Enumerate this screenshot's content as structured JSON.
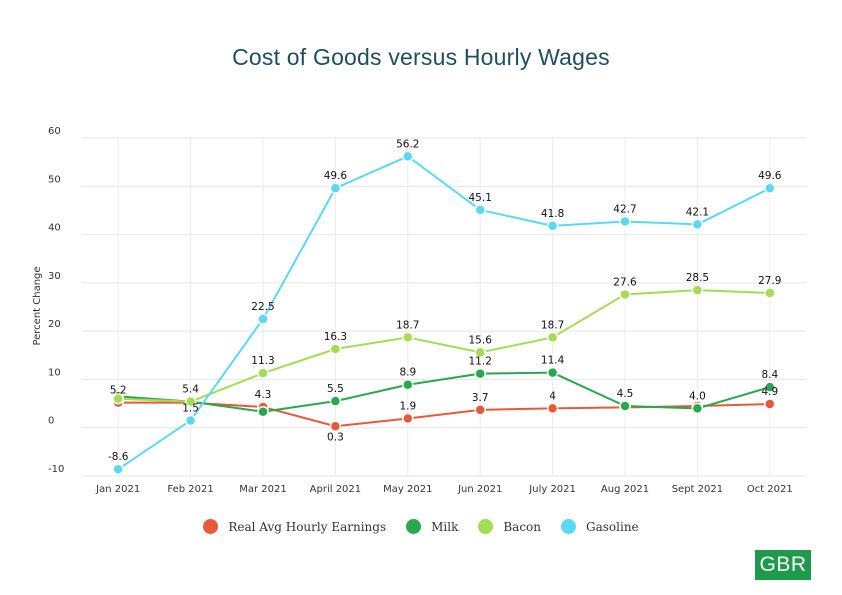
{
  "chart_data": {
    "type": "line",
    "title": "Cost of Goods versus Hourly Wages",
    "xlabel": "",
    "ylabel": "Percent Change",
    "ylim": [
      -10,
      60
    ],
    "yticks": [
      "-10",
      "0",
      "10",
      "20",
      "30",
      "40",
      "50",
      "60"
    ],
    "grid": true,
    "legend_position": "bottom",
    "categories": [
      "Jan 2021",
      "Feb 2021",
      "Mar 2021",
      "April 2021",
      "May 2021",
      "Jun 2021",
      "July 2021",
      "Aug 2021",
      "Sept 2021",
      "Oct 2021"
    ],
    "series": [
      {
        "name": "Real Avg Hourly Earnings",
        "color": "#e8593a",
        "values": [
          5.2,
          5.2,
          4.3,
          0.3,
          1.9,
          3.7,
          4,
          4.2,
          4.5,
          4.9
        ],
        "labels": [
          "5.2",
          null,
          "4.3",
          "0.3",
          "1.9",
          "3.7",
          "4",
          null,
          null,
          "4.9"
        ]
      },
      {
        "name": "Milk",
        "color": "#27a84f",
        "values": [
          6.5,
          5.4,
          3.3,
          5.5,
          8.9,
          11.2,
          11.4,
          4.5,
          4.0,
          8.4
        ],
        "labels": [
          null,
          null,
          null,
          "5.5",
          "8.9",
          "11.2",
          "11.4",
          "4.5",
          "4.0",
          "8.4"
        ]
      },
      {
        "name": "Bacon",
        "color": "#a4dc53",
        "values": [
          6.0,
          5.4,
          11.3,
          16.3,
          18.7,
          15.6,
          18.7,
          27.6,
          28.5,
          27.9
        ],
        "labels": [
          null,
          "5.4",
          "11.3",
          "16.3",
          "18.7",
          "15.6",
          "18.7",
          "27.6",
          "28.5",
          "27.9"
        ]
      },
      {
        "name": "Gasoline",
        "color": "#5bd9f2",
        "values": [
          -8.6,
          1.5,
          22.5,
          49.6,
          56.2,
          45.1,
          41.8,
          42.7,
          42.1,
          49.6
        ],
        "labels": [
          "-8.6",
          "1.5",
          "22.5",
          "49.6",
          "56.2",
          "45.1",
          "41.8",
          "42.7",
          "42.1",
          "49.6"
        ]
      }
    ]
  },
  "logo": {
    "text": "GBR"
  }
}
